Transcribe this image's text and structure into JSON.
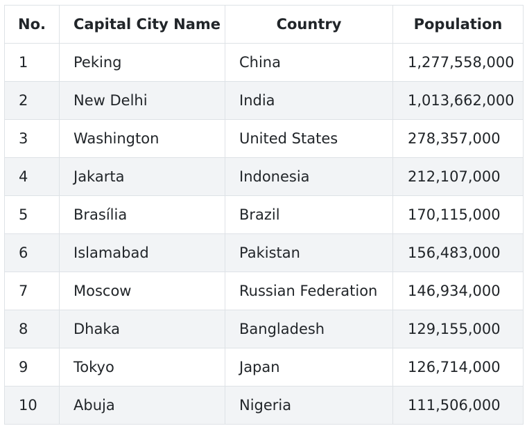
{
  "table": {
    "headers": {
      "no": "No.",
      "city": "Capital City Name",
      "country": "Country",
      "population": "Population"
    },
    "rows": [
      {
        "no": "1",
        "city": "Peking",
        "country": "China",
        "population": "1,277,558,000"
      },
      {
        "no": "2",
        "city": "New Delhi",
        "country": "India",
        "population": "1,013,662,000"
      },
      {
        "no": "3",
        "city": "Washington",
        "country": "United States",
        "population": "278,357,000"
      },
      {
        "no": "4",
        "city": "Jakarta",
        "country": "Indonesia",
        "population": "212,107,000"
      },
      {
        "no": "5",
        "city": "Brasília",
        "country": "Brazil",
        "population": "170,115,000"
      },
      {
        "no": "6",
        "city": "Islamabad",
        "country": "Pakistan",
        "population": "156,483,000"
      },
      {
        "no": "7",
        "city": "Moscow",
        "country": "Russian Federation",
        "population": "146,934,000"
      },
      {
        "no": "8",
        "city": "Dhaka",
        "country": "Bangladesh",
        "population": "129,155,000"
      },
      {
        "no": "9",
        "city": "Tokyo",
        "country": "Japan",
        "population": "126,714,000"
      },
      {
        "no": "10",
        "city": "Abuja",
        "country": "Nigeria",
        "population": "111,506,000"
      }
    ]
  },
  "colors": {
    "border": "#dee2e6",
    "stripe": "#f2f4f6",
    "text": "#212529"
  }
}
